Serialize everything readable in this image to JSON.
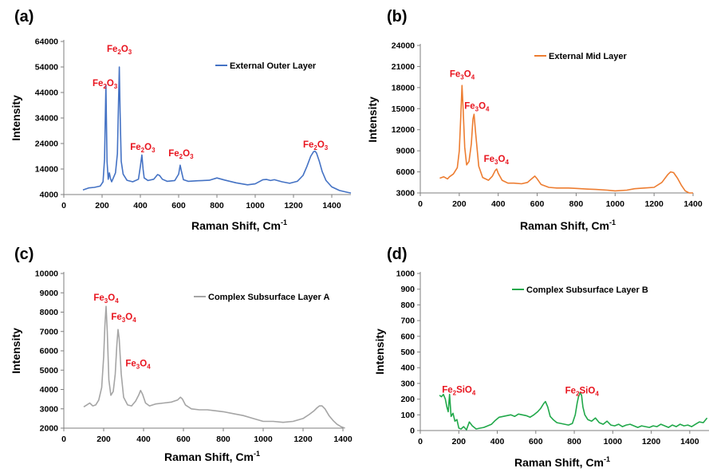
{
  "chart_data": [
    {
      "panel": "(a)",
      "type": "line",
      "xlabel": "Raman Shift, Cm",
      "xlabel_sup": "-1",
      "ylabel": "Intensity",
      "xlim": [
        0,
        1500
      ],
      "ylim": [
        4000,
        64000
      ],
      "xticks": [
        0,
        200,
        400,
        600,
        800,
        1000,
        1200,
        1400
      ],
      "yticks": [
        4000,
        14000,
        24000,
        34000,
        44000,
        54000,
        64000
      ],
      "grid": false,
      "legend_position": "top-right",
      "series": [
        {
          "name": "External Outer Layer",
          "color": "#4472c4",
          "x": [
            100,
            130,
            160,
            190,
            205,
            213,
            220,
            226,
            232,
            238,
            244,
            250,
            256,
            270,
            280,
            286,
            290,
            294,
            300,
            310,
            330,
            360,
            390,
            400,
            408,
            414,
            420,
            440,
            470,
            490,
            500,
            515,
            540,
            580,
            600,
            608,
            615,
            625,
            650,
            700,
            760,
            800,
            840,
            900,
            960,
            1000,
            1040,
            1060,
            1080,
            1100,
            1140,
            1180,
            1220,
            1250,
            1270,
            1290,
            1305,
            1312,
            1320,
            1335,
            1350,
            1370,
            1400,
            1440,
            1480,
            1500
          ],
          "y": [
            5800,
            6600,
            6800,
            7300,
            9000,
            18000,
            47000,
            17000,
            10000,
            12500,
            10200,
            9000,
            10000,
            12500,
            20000,
            40000,
            54000,
            36000,
            17000,
            12000,
            9600,
            9000,
            10000,
            15000,
            19500,
            14000,
            10500,
            9500,
            10000,
            11800,
            11500,
            10000,
            9200,
            9500,
            12000,
            15500,
            13000,
            9800,
            9200,
            9400,
            9600,
            10500,
            9700,
            8600,
            7800,
            8200,
            9800,
            9900,
            9500,
            9800,
            9000,
            8400,
            9200,
            11500,
            15000,
            19000,
            20800,
            21000,
            20300,
            17000,
            13000,
            9500,
            7000,
            5600,
            4900,
            4600
          ]
        }
      ],
      "annotations": [
        {
          "label": "Fe",
          "sub1": "2",
          "mid": "O",
          "sub2": "3",
          "x": 215,
          "y": 46500
        },
        {
          "label": "Fe",
          "sub1": "2",
          "mid": "O",
          "sub2": "3",
          "x": 290,
          "y": 60000
        },
        {
          "label": "Fe",
          "sub1": "2",
          "mid": "O",
          "sub2": "3",
          "x": 412,
          "y": 21500
        },
        {
          "label": "Fe",
          "sub1": "2",
          "mid": "O",
          "sub2": "3",
          "x": 612,
          "y": 19000
        },
        {
          "label": "Fe",
          "sub1": "2",
          "mid": "O",
          "sub2": "3",
          "x": 1315,
          "y": 22500
        }
      ]
    },
    {
      "panel": "(b)",
      "type": "line",
      "xlabel": "Raman Shift, Cm",
      "xlabel_sup": "-1",
      "ylabel": "Intensity",
      "xlim": [
        0,
        1400
      ],
      "ylim": [
        3000,
        24000
      ],
      "xticks": [
        0,
        200,
        400,
        600,
        800,
        1000,
        1200,
        1400
      ],
      "yticks": [
        3000,
        6000,
        9000,
        12000,
        15000,
        18000,
        21000,
        24000
      ],
      "grid": false,
      "legend_position": "top-right",
      "series": [
        {
          "name": "External Mid Layer",
          "color": "#ed7d31",
          "x": [
            100,
            120,
            140,
            150,
            170,
            190,
            200,
            208,
            214,
            220,
            228,
            238,
            250,
            262,
            270,
            276,
            284,
            300,
            320,
            350,
            370,
            385,
            392,
            400,
            420,
            450,
            480,
            520,
            550,
            575,
            588,
            600,
            620,
            660,
            700,
            760,
            800,
            860,
            900,
            960,
            1000,
            1060,
            1100,
            1150,
            1200,
            1240,
            1270,
            1285,
            1300,
            1320,
            1340,
            1360,
            1380,
            1400
          ],
          "y": [
            5100,
            5300,
            5000,
            5300,
            5700,
            6600,
            9000,
            14000,
            18300,
            15000,
            9500,
            7000,
            7500,
            10000,
            13500,
            14200,
            11500,
            6800,
            5200,
            4800,
            5400,
            6200,
            6400,
            5800,
            4800,
            4400,
            4400,
            4300,
            4500,
            5100,
            5400,
            5000,
            4200,
            3800,
            3700,
            3700,
            3650,
            3550,
            3500,
            3400,
            3300,
            3400,
            3600,
            3700,
            3800,
            4500,
            5600,
            6000,
            5900,
            5100,
            4100,
            3300,
            3000,
            3000
          ]
        }
      ],
      "annotations": [
        {
          "label": "Fe",
          "sub1": "3",
          "mid": "O",
          "sub2": "4",
          "x": 215,
          "y": 19500
        },
        {
          "label": "Fe",
          "sub1": "3",
          "mid": "O",
          "sub2": "4",
          "x": 290,
          "y": 15000
        },
        {
          "label": "Fe",
          "sub1": "3",
          "mid": "O",
          "sub2": "4",
          "x": 390,
          "y": 7400
        }
      ]
    },
    {
      "panel": "(c)",
      "type": "line",
      "xlabel": "Raman Shift, Cm",
      "xlabel_sup": "-1",
      "ylabel": "Intensity",
      "xlim": [
        0,
        1400
      ],
      "ylim": [
        2000,
        10000
      ],
      "xticks": [
        0,
        200,
        400,
        600,
        800,
        1000,
        1200,
        1400
      ],
      "yticks": [
        2000,
        3000,
        4000,
        5000,
        6000,
        7000,
        8000,
        9000,
        10000
      ],
      "grid": false,
      "legend_position": "top-right",
      "series": [
        {
          "name": "Complex Subsurface Layer A",
          "color": "#a5a5a5",
          "x": [
            100,
            115,
            130,
            145,
            160,
            175,
            190,
            200,
            206,
            212,
            218,
            226,
            236,
            248,
            258,
            266,
            272,
            278,
            288,
            300,
            320,
            340,
            360,
            375,
            385,
            395,
            410,
            430,
            460,
            500,
            540,
            570,
            585,
            595,
            610,
            640,
            680,
            720,
            760,
            800,
            850,
            900,
            950,
            1000,
            1050,
            1100,
            1150,
            1200,
            1230,
            1255,
            1270,
            1282,
            1295,
            1310,
            1330,
            1350,
            1370,
            1390,
            1410
          ],
          "y": [
            3100,
            3200,
            3300,
            3150,
            3200,
            3450,
            4100,
            5700,
            7300,
            8300,
            7000,
            4500,
            3700,
            3900,
            4800,
            6300,
            7100,
            6600,
            4800,
            3600,
            3200,
            3150,
            3400,
            3700,
            3950,
            3750,
            3300,
            3150,
            3250,
            3300,
            3350,
            3450,
            3600,
            3500,
            3200,
            3000,
            2950,
            2950,
            2900,
            2850,
            2750,
            2650,
            2500,
            2350,
            2350,
            2300,
            2350,
            2500,
            2700,
            2900,
            3050,
            3150,
            3150,
            3000,
            2650,
            2400,
            2200,
            2080,
            2000
          ]
        }
      ],
      "annotations": [
        {
          "label": "Fe",
          "sub1": "3",
          "mid": "O",
          "sub2": "4",
          "x": 212,
          "y": 8600
        },
        {
          "label": "Fe",
          "sub1": "3",
          "mid": "O",
          "sub2": "4",
          "x": 300,
          "y": 7600
        },
        {
          "label": "Fe",
          "sub1": "3",
          "mid": "O",
          "sub2": "4",
          "x": 372,
          "y": 5200
        }
      ]
    },
    {
      "panel": "(d)",
      "type": "line",
      "xlabel": "Raman Shift, Cm",
      "xlabel_sup": "-1",
      "ylabel": "Intensity",
      "xlim": [
        0,
        1500
      ],
      "ylim": [
        0,
        1000
      ],
      "xticks": [
        0,
        200,
        400,
        600,
        800,
        1000,
        1200,
        1400
      ],
      "yticks": [
        0,
        100,
        200,
        300,
        400,
        500,
        600,
        700,
        800,
        900,
        1000
      ],
      "grid": false,
      "legend_position": "top-right",
      "series": [
        {
          "name": "Complex Subsurface Layer B",
          "color": "#21a84a",
          "x": [
            100,
            110,
            120,
            130,
            138,
            145,
            152,
            160,
            170,
            180,
            190,
            200,
            212,
            225,
            240,
            255,
            270,
            290,
            310,
            330,
            350,
            370,
            390,
            410,
            430,
            450,
            470,
            490,
            510,
            530,
            550,
            570,
            590,
            610,
            625,
            640,
            650,
            662,
            675,
            690,
            710,
            730,
            750,
            770,
            790,
            805,
            815,
            822,
            830,
            838,
            845,
            855,
            870,
            890,
            910,
            930,
            950,
            970,
            990,
            1010,
            1030,
            1050,
            1070,
            1090,
            1110,
            1130,
            1150,
            1170,
            1190,
            1210,
            1230,
            1250,
            1270,
            1290,
            1310,
            1330,
            1350,
            1370,
            1390,
            1410,
            1430,
            1450,
            1470,
            1490
          ],
          "y": [
            225,
            215,
            230,
            200,
            150,
            120,
            230,
            90,
            110,
            60,
            70,
            15,
            10,
            25,
            5,
            55,
            30,
            10,
            15,
            20,
            30,
            40,
            65,
            85,
            90,
            95,
            100,
            90,
            105,
            100,
            95,
            85,
            100,
            120,
            140,
            170,
            185,
            150,
            90,
            70,
            50,
            45,
            40,
            35,
            45,
            100,
            175,
            215,
            240,
            225,
            150,
            100,
            70,
            60,
            80,
            50,
            40,
            60,
            35,
            30,
            40,
            25,
            35,
            40,
            30,
            20,
            30,
            25,
            20,
            30,
            25,
            40,
            30,
            20,
            35,
            25,
            40,
            30,
            35,
            25,
            40,
            55,
            50,
            80
          ]
        }
      ],
      "annotations": [
        {
          "label": "Fe",
          "sub1": "2",
          "mid": "SiO",
          "sub2": "4",
          "x": 200,
          "y": 240
        },
        {
          "label": "Fe",
          "sub1": "2",
          "mid": "SiO",
          "sub2": "4",
          "x": 840,
          "y": 235
        }
      ]
    }
  ]
}
